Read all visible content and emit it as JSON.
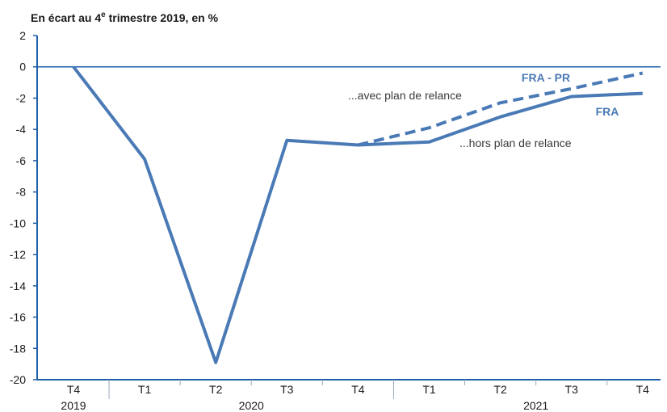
{
  "chart_data": {
    "type": "line",
    "title": "En écart au 4e trimestre 2019, en %",
    "title_parts": {
      "prefix": "En écart au 4",
      "superscript": "e",
      "suffix": " trimestre 2019, en %"
    },
    "xlabel": "",
    "ylabel": "",
    "categories": [
      "T4",
      "T1",
      "T2",
      "T3",
      "T4",
      "T1",
      "T2",
      "T3",
      "T4"
    ],
    "years": [
      {
        "label": "2019",
        "from": 0,
        "to": 0
      },
      {
        "label": "2020",
        "from": 1,
        "to": 4
      },
      {
        "label": "2021",
        "from": 5,
        "to": 8
      }
    ],
    "ylim": [
      -20,
      2
    ],
    "yticks": [
      2,
      0,
      -2,
      -4,
      -6,
      -8,
      -10,
      -12,
      -14,
      -16,
      -18,
      -20
    ],
    "grid": false,
    "series": [
      {
        "name": "FRA",
        "style": "solid",
        "color": "#4a7ab5",
        "values": [
          0,
          -5.9,
          -18.9,
          -4.7,
          -5.0,
          -4.8,
          -3.2,
          -1.9,
          -1.7
        ]
      },
      {
        "name": "FRA - PR",
        "style": "dashed",
        "color": "#4a7ab5",
        "values": [
          null,
          null,
          null,
          null,
          -5.0,
          -3.9,
          -2.3,
          -1.4,
          -0.4
        ]
      }
    ],
    "annotations": [
      {
        "text": "...avec plan de relance",
        "series": "FRA - PR"
      },
      {
        "text": "...hors plan de relance",
        "series": "FRA"
      }
    ]
  },
  "colors": {
    "line": "#4a7ab5",
    "axis": "#1f5fa8",
    "text": "#1a1a1a"
  }
}
